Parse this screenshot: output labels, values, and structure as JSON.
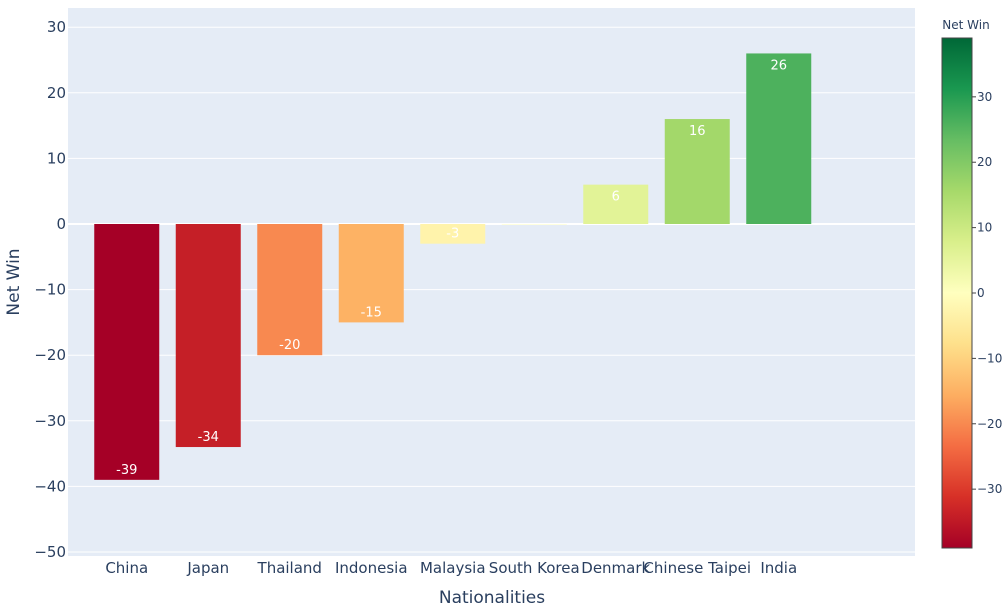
{
  "chart_data": {
    "type": "bar",
    "categories": [
      "China",
      "Japan",
      "Thailand",
      "Indonesia",
      "Malaysia",
      "South Korea",
      "Denmark",
      "Chinese Taipei",
      "India"
    ],
    "values": [
      -39,
      -34,
      -20,
      -15,
      -3,
      0,
      6,
      16,
      26
    ],
    "data_labels": [
      "-39",
      "-34",
      "-20",
      "-15",
      "-3",
      "",
      "6",
      "16",
      "26"
    ],
    "title": "",
    "xlabel": "Nationalities",
    "ylabel": "Net Win",
    "ylim": [
      -50,
      33
    ],
    "y_ticks": [
      30,
      20,
      10,
      0,
      -10,
      -20,
      -30,
      -40,
      -50
    ],
    "y_tick_labels": [
      "30",
      "20",
      "10",
      "0",
      "−10",
      "−20",
      "−30",
      "−40",
      "−50"
    ],
    "grid": true,
    "colorbar": {
      "title": "Net Win",
      "colorscale": "RdYlGn",
      "range": [
        -39,
        39
      ],
      "ticks": [
        30,
        20,
        10,
        0,
        -10,
        -20,
        -30
      ],
      "tick_labels": [
        "30",
        "20",
        "10",
        "0",
        "−10",
        "−20",
        "−30"
      ]
    },
    "colors": {
      "plot_background": "#E5ECF6",
      "grid": "#ffffff",
      "text": "#2a3f5f",
      "data_label": "#ffffff"
    }
  }
}
